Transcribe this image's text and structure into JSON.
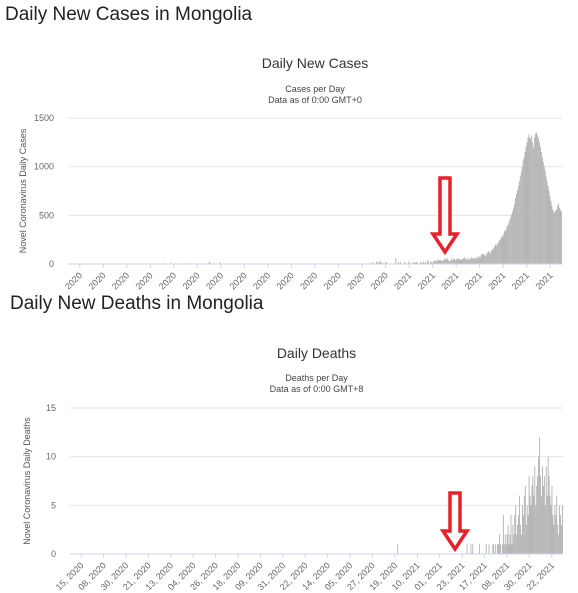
{
  "page": {
    "cases_heading": "Daily New Cases in Mongolia",
    "deaths_heading": "Daily New Deaths in Mongolia"
  },
  "colors": {
    "bar": "#aaaaaa",
    "arrow": "#e8202a",
    "axis": "#ccd6eb",
    "grid": "#e6e6e6"
  },
  "chart_data": [
    {
      "type": "bar",
      "title": "Daily New Cases",
      "subtitle_lines": [
        "Cases per Day",
        "Data as of 0:00 GMT+0"
      ],
      "ylabel": "Novel Coronavirus Daily Cases",
      "ylim": [
        0,
        1500
      ],
      "yticks": [
        0,
        500,
        1000,
        1500
      ],
      "xtick_labels": [
        "2020",
        "2020",
        "2020",
        "2020",
        "2020",
        "2020",
        "2020",
        "2020",
        "2020",
        "2020",
        "2020",
        "2020",
        "2020",
        "2020",
        "2021",
        "2021",
        "2021",
        "2021",
        "2021",
        "2021",
        "2021"
      ],
      "grid": true,
      "annotation": "red arrow pointing down at the start of the 2021 rise",
      "series": [
        {
          "values": [
            0,
            0,
            0,
            0,
            0,
            0,
            0,
            0,
            0,
            1,
            0,
            0,
            0,
            0,
            0,
            0,
            0,
            0,
            0,
            1,
            0,
            0,
            0,
            0,
            0,
            0,
            0,
            0,
            0,
            0,
            0,
            0,
            0,
            0,
            1,
            0,
            0,
            0,
            0,
            0,
            0,
            0,
            0,
            0,
            0,
            0,
            2,
            0,
            0,
            0,
            0,
            0,
            0,
            0,
            5,
            0,
            0,
            0,
            0,
            0,
            0,
            0,
            1,
            0,
            0,
            0,
            0,
            0,
            0,
            0,
            0,
            0,
            0,
            0,
            0,
            3,
            0,
            0,
            0,
            0,
            0,
            0,
            0,
            0,
            0,
            0,
            0,
            0,
            8,
            0,
            0,
            0,
            0,
            0,
            0,
            0,
            0,
            0,
            0,
            12,
            0,
            0,
            0,
            0,
            0,
            0,
            0,
            15,
            0,
            0,
            0,
            0,
            0,
            0,
            0,
            0,
            0,
            0,
            0,
            0,
            0,
            0,
            8,
            0,
            0,
            0,
            0,
            0,
            10,
            0,
            0,
            0,
            0,
            0,
            0,
            0,
            0,
            0,
            0,
            0,
            0,
            0,
            0,
            0,
            0,
            0,
            0,
            20,
            15,
            0,
            0,
            0,
            10,
            0,
            0,
            0,
            0,
            0,
            20,
            0,
            0,
            0,
            0,
            0,
            0,
            0,
            0,
            0,
            0,
            0,
            0,
            2,
            0,
            0,
            0,
            0,
            0,
            0,
            0,
            0,
            0,
            0,
            0,
            0,
            0,
            0,
            0,
            0,
            0,
            0,
            0,
            0,
            0,
            0,
            0,
            0,
            0,
            0,
            0,
            0,
            0,
            0,
            0,
            0,
            0,
            0,
            0,
            0,
            0,
            0,
            0,
            0,
            0,
            0,
            0,
            0,
            0,
            0,
            0,
            0,
            0,
            0,
            0,
            0,
            0,
            0,
            0,
            0,
            0,
            0,
            0,
            0,
            0,
            0,
            0,
            0,
            0,
            0,
            0,
            0,
            0,
            0,
            0,
            0,
            0,
            0,
            0,
            0,
            0,
            0,
            0,
            0,
            0,
            0,
            0,
            0,
            0,
            0,
            0,
            0,
            0,
            0,
            0,
            0,
            0,
            0,
            0,
            0,
            0,
            0,
            0,
            0,
            0,
            0,
            0,
            0,
            0,
            0,
            0,
            0,
            0,
            0,
            0,
            0,
            0,
            0,
            0,
            0,
            0,
            0,
            0,
            0,
            0,
            0,
            0,
            0,
            0,
            0,
            0,
            0,
            0,
            0,
            0,
            0,
            0,
            0,
            0,
            0,
            0,
            0,
            0,
            0,
            0,
            5,
            0,
            10,
            0,
            0,
            20,
            0,
            0,
            0,
            25,
            15,
            10,
            30,
            20,
            15,
            0,
            10,
            5,
            20,
            15,
            10,
            5,
            0,
            0,
            0,
            0,
            0,
            0,
            0,
            60,
            10,
            0,
            25,
            0,
            20,
            0,
            0,
            0,
            20,
            10,
            0,
            0,
            30,
            10,
            10,
            0,
            15,
            0,
            20,
            15,
            10,
            20,
            10,
            5,
            0,
            20,
            15,
            10,
            25,
            10,
            20,
            0,
            40,
            20,
            10,
            30,
            20,
            10,
            25,
            30,
            40,
            30,
            25,
            50,
            40,
            35,
            45,
            30,
            35,
            40,
            50,
            55,
            45,
            60,
            40,
            30,
            35,
            55,
            40,
            50,
            60,
            40,
            45,
            55,
            50,
            60,
            40,
            45,
            50,
            55,
            60,
            65,
            50,
            55,
            40,
            60,
            45,
            50,
            70,
            55,
            60,
            65,
            50,
            75,
            60,
            70,
            80,
            65,
            90,
            100,
            110,
            100,
            90,
            85,
            110,
            120,
            130,
            120,
            110,
            140,
            150,
            160,
            180,
            200,
            190,
            210,
            220,
            240,
            250,
            270,
            300,
            280,
            320,
            350,
            340,
            380,
            400,
            420,
            450,
            480,
            510,
            540,
            580,
            620,
            680,
            720,
            760,
            800,
            850,
            900,
            950,
            1000,
            1060,
            1100,
            1150,
            1200,
            1250,
            1300,
            1330,
            1300,
            1280,
            1320,
            1250,
            1200,
            1300,
            1340,
            1350,
            1320,
            1290,
            1250,
            1200,
            1150,
            1100,
            1050,
            1000,
            960,
            900,
            850,
            800,
            750,
            700,
            650,
            600,
            560,
            540,
            530,
            550,
            560,
            600,
            620,
            580,
            560,
            540
          ]
        }
      ]
    },
    {
      "type": "bar",
      "title": "Daily Deaths",
      "subtitle_lines": [
        "Deaths per Day",
        "Data as of 0:00 GMT+8"
      ],
      "ylabel": "Novel Coronavirus Daily Deaths",
      "ylim": [
        0,
        15
      ],
      "yticks": [
        0,
        5,
        10,
        15
      ],
      "xtick_labels": [
        "15, 2020",
        "08, 2020",
        "30, 2020",
        "21, 2020",
        "13, 2020",
        "04, 2020",
        "26, 2020",
        "18, 2020",
        "09, 2020",
        "31, 2020",
        "22, 2020",
        "14, 2020",
        "05, 2020",
        "27, 2020",
        "19, 2020",
        "10, 2021",
        "01, 2021",
        "23, 2021",
        "17, 2021",
        "08, 2021",
        "30, 2021",
        "22, 2021"
      ],
      "grid": true,
      "annotation": "red arrow pointing down at the start of 2021",
      "series": [
        {
          "values": [
            0,
            0,
            0,
            0,
            0,
            0,
            0,
            0,
            0,
            0,
            0,
            0,
            0,
            0,
            0,
            0,
            0,
            0,
            0,
            0,
            0,
            0,
            0,
            0,
            0,
            0,
            0,
            0,
            0,
            0,
            0,
            0,
            0,
            0,
            0,
            0,
            0,
            0,
            0,
            0,
            0,
            0,
            0,
            0,
            0,
            0,
            0,
            0,
            0,
            0,
            0,
            0,
            0,
            0,
            0,
            0,
            0,
            0,
            0,
            0,
            0,
            0,
            0,
            0,
            0,
            0,
            0,
            0,
            0,
            0,
            0,
            0,
            0,
            0,
            0,
            0,
            0,
            0,
            0,
            0,
            0,
            0,
            0,
            0,
            0,
            0,
            0,
            0,
            0,
            0,
            0,
            0,
            0,
            0,
            0,
            0,
            0,
            0,
            0,
            0,
            0,
            0,
            0,
            0,
            0,
            0,
            0,
            0,
            0,
            0,
            0,
            0,
            0,
            0,
            0,
            0,
            0,
            0,
            0,
            0,
            0,
            0,
            0,
            0,
            0,
            0,
            0,
            0,
            0,
            0,
            0,
            0,
            0,
            0,
            0,
            0,
            0,
            0,
            0,
            0,
            0,
            0,
            0,
            0,
            0,
            0,
            0,
            0,
            0,
            0,
            0,
            0,
            0,
            0,
            0,
            0,
            0,
            0,
            0,
            0,
            0,
            0,
            0,
            0,
            0,
            0,
            0,
            0,
            0,
            0,
            0,
            0,
            0,
            0,
            0,
            0,
            0,
            0,
            0,
            0,
            0,
            0,
            0,
            0,
            0,
            0,
            0,
            0,
            0,
            0,
            0,
            0,
            0,
            0,
            0,
            0,
            0,
            0,
            0,
            0,
            0,
            0,
            0,
            0,
            0,
            0,
            0,
            0,
            0,
            0,
            0,
            0,
            0,
            0,
            0,
            0,
            0,
            0,
            0,
            0,
            0,
            0,
            0,
            0,
            0,
            0,
            0,
            0,
            0,
            0,
            0,
            0,
            0,
            0,
            0,
            0,
            0,
            0,
            0,
            0,
            0,
            0,
            0,
            0,
            0,
            0,
            0,
            0,
            0,
            0,
            0,
            0,
            0,
            0,
            0,
            0,
            0,
            0,
            0,
            0,
            0,
            0,
            0,
            0,
            0,
            0,
            0,
            0,
            0,
            0,
            0,
            0,
            0,
            0,
            0,
            0,
            0,
            0,
            0,
            0,
            0,
            0,
            0,
            0,
            0,
            0,
            0,
            0,
            0,
            0,
            0,
            0,
            0,
            0,
            0,
            0,
            0,
            0,
            0,
            0,
            0,
            0,
            0,
            0,
            0,
            0,
            0,
            0,
            0,
            0,
            0,
            0,
            0,
            0,
            0,
            0,
            0,
            0,
            0,
            0,
            0,
            0,
            0,
            0,
            0,
            0,
            0,
            0,
            0,
            0,
            0,
            0,
            0,
            0,
            0,
            0,
            0,
            0,
            0,
            0,
            0,
            0,
            0,
            1,
            0,
            0,
            0,
            0,
            0,
            0,
            0,
            0,
            0,
            0,
            0,
            0,
            0,
            0,
            0,
            0,
            0,
            0,
            0,
            0,
            0,
            0,
            0,
            0,
            0,
            0,
            0,
            0,
            0,
            0,
            0,
            0,
            0,
            0,
            0,
            0,
            0,
            0,
            0,
            0,
            0,
            0,
            0,
            0,
            0,
            0,
            0,
            0,
            0,
            0,
            0,
            0,
            0,
            0,
            0,
            0,
            0,
            0,
            0,
            0,
            0,
            0,
            0,
            0,
            0,
            0,
            0,
            0,
            0,
            0,
            0,
            0,
            1,
            0,
            0,
            0,
            1,
            0,
            1,
            0,
            0,
            0,
            0,
            0,
            0,
            1,
            0,
            0,
            0,
            0,
            0,
            0,
            1,
            0,
            0,
            1,
            0,
            0,
            0,
            1,
            1,
            0,
            1,
            0,
            1,
            1,
            2,
            1,
            0,
            1,
            4,
            1,
            2,
            1,
            2,
            3,
            1,
            2,
            4,
            1,
            3,
            2,
            4,
            5,
            2,
            3,
            4,
            6,
            3,
            2,
            5,
            4,
            6,
            7,
            3,
            5,
            4,
            8,
            6,
            5,
            7,
            8,
            6,
            9,
            5,
            7,
            8,
            10,
            12,
            8,
            6,
            9,
            7,
            8,
            5,
            9,
            6,
            10,
            8,
            6,
            5,
            7,
            4,
            3,
            5,
            4,
            6,
            3,
            2,
            5,
            4,
            3,
            5
          ]
        }
      ]
    }
  ]
}
